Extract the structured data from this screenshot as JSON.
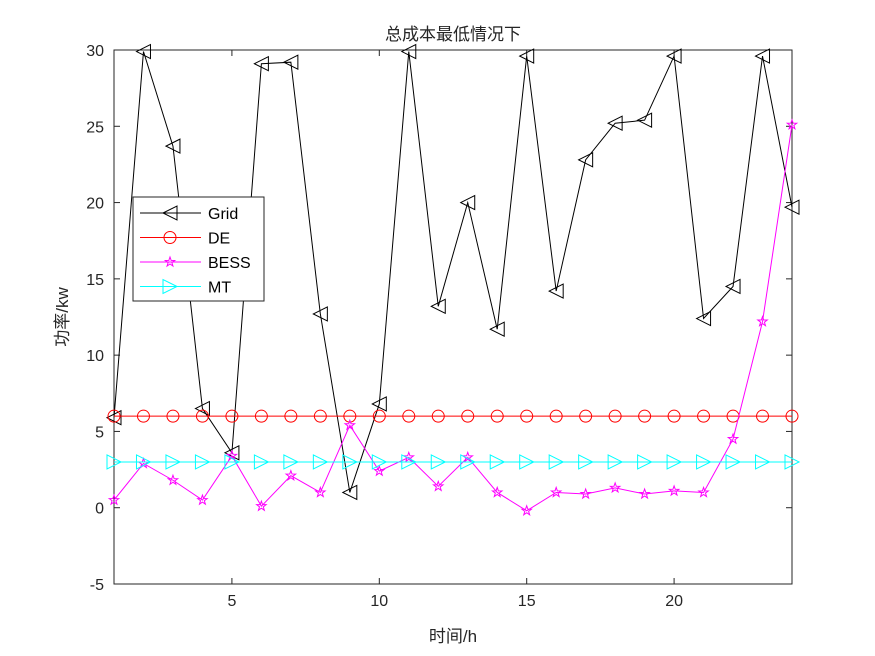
{
  "chart_data": {
    "type": "line",
    "title": "总成本最低情况下",
    "xlabel": "时间/h",
    "ylabel": "功率/kw",
    "xlim": [
      1,
      24
    ],
    "ylim": [
      -5,
      30
    ],
    "xticks": [
      5,
      10,
      15,
      20
    ],
    "yticks": [
      -5,
      0,
      5,
      10,
      15,
      20,
      25,
      30
    ],
    "legend_position": "left-middle",
    "x": [
      1,
      2,
      3,
      4,
      5,
      6,
      7,
      8,
      9,
      10,
      11,
      12,
      13,
      14,
      15,
      16,
      17,
      18,
      19,
      20,
      21,
      22,
      23,
      24
    ],
    "series": [
      {
        "name": "Grid",
        "color": "#000000",
        "marker": "triangle-left",
        "values": [
          5.9,
          29.9,
          23.7,
          6.5,
          3.6,
          29.1,
          29.2,
          12.7,
          1.0,
          6.8,
          29.9,
          13.2,
          20.0,
          11.7,
          29.6,
          14.2,
          22.8,
          25.2,
          25.4,
          29.6,
          12.4,
          14.5,
          29.6,
          19.7
        ]
      },
      {
        "name": "DE",
        "color": "#ff0000",
        "marker": "circle",
        "values": [
          6,
          6,
          6,
          6,
          6,
          6,
          6,
          6,
          6,
          6,
          6,
          6,
          6,
          6,
          6,
          6,
          6,
          6,
          6,
          6,
          6,
          6,
          6,
          6
        ]
      },
      {
        "name": "BESS",
        "color": "#ff00ff",
        "marker": "star",
        "values": [
          0.5,
          2.9,
          1.8,
          0.5,
          3.4,
          0.1,
          2.1,
          1.0,
          5.4,
          2.4,
          3.3,
          1.4,
          3.3,
          1.0,
          -0.2,
          1.0,
          0.9,
          1.3,
          0.9,
          1.1,
          1.0,
          4.5,
          12.2,
          25.1
        ]
      },
      {
        "name": "MT",
        "color": "#00ffff",
        "marker": "triangle-right",
        "values": [
          3,
          3,
          3,
          3,
          3,
          3,
          3,
          3,
          3,
          3,
          3,
          3,
          3,
          3,
          3,
          3,
          3,
          3,
          3,
          3,
          3,
          3,
          3,
          3
        ]
      }
    ]
  }
}
